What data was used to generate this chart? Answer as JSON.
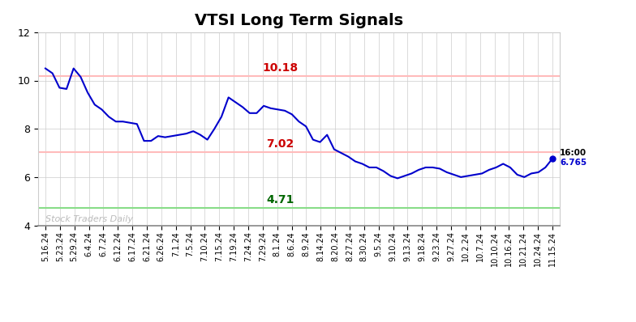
{
  "title": "VTSI Long Term Signals",
  "xlabels": [
    "5.16.24",
    "5.23.24",
    "5.29.24",
    "6.4.24",
    "6.7.24",
    "6.12.24",
    "6.17.24",
    "6.21.24",
    "6.26.24",
    "7.1.24",
    "7.5.24",
    "7.10.24",
    "7.15.24",
    "7.19.24",
    "7.24.24",
    "7.29.24",
    "8.1.24",
    "8.6.24",
    "8.9.24",
    "8.14.24",
    "8.20.24",
    "8.27.24",
    "8.30.24",
    "9.5.24",
    "9.10.24",
    "9.13.24",
    "9.18.24",
    "9.23.24",
    "9.27.24",
    "10.2.24",
    "10.7.24",
    "10.10.24",
    "10.16.24",
    "10.21.24",
    "10.24.24",
    "11.15.24"
  ],
  "prices_dense": [
    10.5,
    10.3,
    9.7,
    9.65,
    10.5,
    10.15,
    9.5,
    9.0,
    8.8,
    8.5,
    8.3,
    8.3,
    8.25,
    8.2,
    7.5,
    7.5,
    7.7,
    7.65,
    7.7,
    7.75,
    7.8,
    7.9,
    7.75,
    7.55,
    8.0,
    8.5,
    9.3,
    9.1,
    8.9,
    8.65,
    8.65,
    8.95,
    8.85,
    8.8,
    8.75,
    8.6,
    8.3,
    8.1,
    7.55,
    7.45,
    7.75,
    7.15,
    7.0,
    6.85,
    6.65,
    6.55,
    6.4,
    6.4,
    6.25,
    6.05,
    5.95,
    6.05,
    6.15,
    6.3,
    6.4,
    6.4,
    6.35,
    6.2,
    6.1,
    6.0,
    6.05,
    6.1,
    6.15,
    6.3,
    6.4,
    6.55,
    6.4,
    6.1,
    6.0,
    6.15,
    6.2,
    6.4,
    6.765
  ],
  "hline_red_upper": 10.18,
  "hline_red_lower": 7.02,
  "hline_green": 4.71,
  "hline_red_color": "#ffbbbb",
  "hline_green_color": "#88dd88",
  "label_red_upper": "10.18",
  "label_red_lower": "7.02",
  "label_green": "4.71",
  "label_red_color": "#cc0000",
  "label_green_color": "#006600",
  "last_price": 6.765,
  "last_time": "16:00",
  "last_dot_color": "#0000cc",
  "line_color": "#0000cc",
  "watermark": "Stock Traders Daily",
  "watermark_color": "#bbbbbb",
  "ylim": [
    4,
    12
  ],
  "yticks": [
    4,
    6,
    8,
    10,
    12
  ],
  "background_color": "#ffffff",
  "grid_color": "#cccccc",
  "title_fontsize": 14,
  "label_fontsize": 10,
  "tick_fontsize": 7
}
